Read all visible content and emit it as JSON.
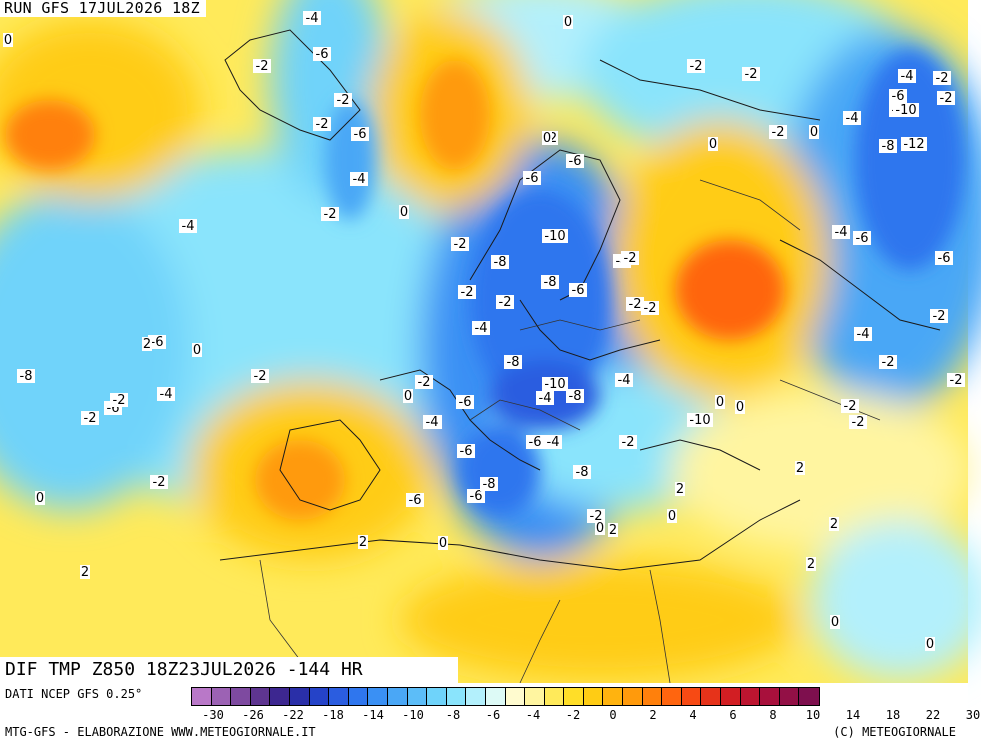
{
  "run_label": "RUN GFS 17JUL2026 18Z",
  "map_title": "DIF TMP Z850 18Z23JUL2026 -144 HR",
  "data_source": "DATI NCEP GFS 0.25°",
  "credit": "MTG-GFS - ELABORAZIONE WWW.METEOGIORNALE.IT",
  "copyright": "(C) METEOGIORNALE",
  "legend": {
    "colors": [
      "#b978c8",
      "#9c62b4",
      "#7e4aa0",
      "#5e3590",
      "#3d2790",
      "#2a2fa8",
      "#2543c8",
      "#2b5de0",
      "#2f76ee",
      "#3a90f4",
      "#4aa7f6",
      "#5cbdf8",
      "#6fd3fa",
      "#8ae4fc",
      "#b3f0fc",
      "#ddfaf6",
      "#fffbcf",
      "#fff5a0",
      "#ffea5a",
      "#ffde28",
      "#ffcc14",
      "#ffb30f",
      "#ff9a0c",
      "#ff800c",
      "#ff650f",
      "#f74a14",
      "#e6331a",
      "#d21e23",
      "#bd1530",
      "#a8103c",
      "#931046",
      "#7e0f4e"
    ],
    "ticks": [
      "-30",
      "-26",
      "-22",
      "-18",
      "-14",
      "-10",
      "-8",
      "-6",
      "-4",
      "-2",
      "0",
      "2",
      "4",
      "6",
      "8",
      "10",
      "14",
      "18",
      "22",
      "30"
    ]
  },
  "contour_labels": [
    "-4",
    "-6",
    "-2",
    "0",
    "-2",
    "-6",
    "-2",
    "-4",
    "-6",
    "-6",
    "-4",
    "-2",
    "0",
    "-2",
    "-2",
    "-4",
    "-6",
    "-8",
    "-10",
    "-12",
    "-8",
    "-4",
    "-6",
    "-6",
    "-2",
    "-2",
    "0",
    "-4",
    "-2",
    "0",
    "2",
    "0",
    "-2",
    "-2",
    "-10",
    "-8",
    "-4",
    "-2",
    "-8",
    "-6",
    "-2",
    "-2",
    "-8",
    "-6",
    "-2",
    "0",
    "-6",
    "-4",
    "-2",
    "-4",
    "0",
    "-2",
    "-4",
    "-8",
    "-10",
    "-8",
    "-4",
    "-6",
    "-10",
    "-2",
    "-2",
    "0",
    "2",
    "-2",
    "-4",
    "-6",
    "-2",
    "2",
    "2",
    "2",
    "-6",
    "-8",
    "-2",
    "-8",
    "-6",
    "-4",
    "-6",
    "-2",
    "2",
    "0",
    "-2",
    "0",
    "2",
    "0",
    "2",
    "0",
    "0",
    "2",
    "0",
    "0",
    "-4",
    "-2",
    "-2",
    "-2",
    "0",
    "-2",
    "-4"
  ]
}
